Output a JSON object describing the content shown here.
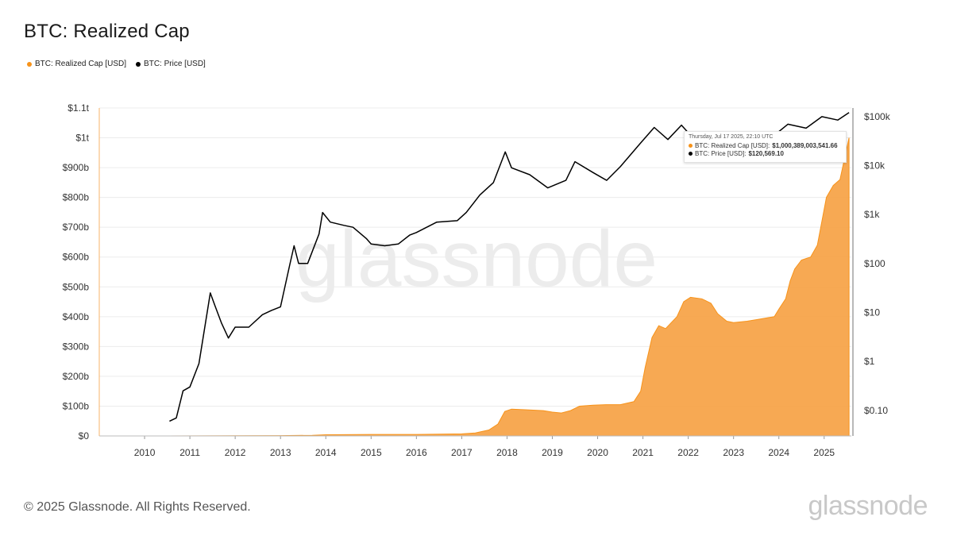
{
  "title": "BTC: Realized Cap",
  "legend": [
    {
      "label": "BTC: Realized Cap [USD]",
      "color": "#f7931a"
    },
    {
      "label": "BTC: Price [USD]",
      "color": "#000000"
    }
  ],
  "watermark": "glassnode",
  "footer": "© 2025 Glassnode. All Rights Reserved.",
  "brand": "glassnode",
  "tooltip": {
    "date": "Thursday, Jul 17 2025, 22:10 UTC",
    "rows": [
      {
        "label": "BTC: Realized Cap [USD]:",
        "value": "$1,000,389,003,541.66",
        "color": "#f7931a"
      },
      {
        "label": "BTC: Price [USD]:",
        "value": "$120,569.10",
        "color": "#000000"
      }
    ]
  },
  "chart_data": {
    "type": "area",
    "title": "BTC: Realized Cap",
    "x_ticks": [
      "2010",
      "2011",
      "2012",
      "2013",
      "2014",
      "2015",
      "2016",
      "2017",
      "2018",
      "2019",
      "2020",
      "2021",
      "2022",
      "2023",
      "2024",
      "2025"
    ],
    "x_range": [
      2009.0,
      2025.6
    ],
    "left_axis": {
      "ticks": [
        "$0",
        "$100b",
        "$200b",
        "$300b",
        "$400b",
        "$500b",
        "$600b",
        "$700b",
        "$800b",
        "$900b",
        "$1t",
        "$1.1t"
      ],
      "range": [
        0,
        1100
      ]
    },
    "right_axis": {
      "scale": "log",
      "ticks": [
        "$0.10",
        "$1",
        "$10",
        "$100",
        "$1k",
        "$10k",
        "$100k"
      ],
      "range": [
        0.03,
        150000
      ]
    },
    "grid": true,
    "legend_position": "top-left",
    "series": [
      {
        "name": "BTC: Realized Cap [USD]",
        "unit": "billions USD",
        "color": "#f7931a",
        "axis": "left",
        "points": [
          [
            2009.0,
            0
          ],
          [
            2010.5,
            0
          ],
          [
            2012,
            0.5
          ],
          [
            2013,
            1
          ],
          [
            2013.7,
            2
          ],
          [
            2014,
            4
          ],
          [
            2015,
            5
          ],
          [
            2016,
            5
          ],
          [
            2017,
            7
          ],
          [
            2017.3,
            10
          ],
          [
            2017.6,
            20
          ],
          [
            2017.8,
            40
          ],
          [
            2017.95,
            82
          ],
          [
            2018.1,
            90
          ],
          [
            2018.4,
            88
          ],
          [
            2018.8,
            85
          ],
          [
            2019.0,
            80
          ],
          [
            2019.2,
            77
          ],
          [
            2019.4,
            85
          ],
          [
            2019.6,
            100
          ],
          [
            2019.9,
            103
          ],
          [
            2020.2,
            105
          ],
          [
            2020.5,
            105
          ],
          [
            2020.8,
            115
          ],
          [
            2020.95,
            150
          ],
          [
            2021.05,
            230
          ],
          [
            2021.2,
            330
          ],
          [
            2021.35,
            370
          ],
          [
            2021.5,
            360
          ],
          [
            2021.75,
            400
          ],
          [
            2021.9,
            450
          ],
          [
            2022.05,
            465
          ],
          [
            2022.3,
            460
          ],
          [
            2022.5,
            445
          ],
          [
            2022.65,
            410
          ],
          [
            2022.85,
            385
          ],
          [
            2023.0,
            380
          ],
          [
            2023.3,
            385
          ],
          [
            2023.5,
            390
          ],
          [
            2023.9,
            400
          ],
          [
            2024.0,
            425
          ],
          [
            2024.15,
            460
          ],
          [
            2024.25,
            520
          ],
          [
            2024.35,
            560
          ],
          [
            2024.5,
            590
          ],
          [
            2024.7,
            600
          ],
          [
            2024.85,
            640
          ],
          [
            2024.95,
            720
          ],
          [
            2025.05,
            800
          ],
          [
            2025.2,
            840
          ],
          [
            2025.35,
            860
          ],
          [
            2025.45,
            930
          ],
          [
            2025.55,
            1000
          ]
        ]
      },
      {
        "name": "BTC: Price [USD]",
        "unit": "USD",
        "color": "#000000",
        "axis": "right",
        "points": [
          [
            2010.55,
            0.06
          ],
          [
            2010.7,
            0.07
          ],
          [
            2010.85,
            0.25
          ],
          [
            2011.0,
            0.3
          ],
          [
            2011.2,
            0.9
          ],
          [
            2011.45,
            25
          ],
          [
            2011.55,
            14
          ],
          [
            2011.7,
            6
          ],
          [
            2011.85,
            3
          ],
          [
            2012.0,
            5
          ],
          [
            2012.3,
            5
          ],
          [
            2012.6,
            9
          ],
          [
            2012.8,
            11
          ],
          [
            2013.0,
            13
          ],
          [
            2013.2,
            90
          ],
          [
            2013.3,
            230
          ],
          [
            2013.4,
            100
          ],
          [
            2013.6,
            100
          ],
          [
            2013.85,
            400
          ],
          [
            2013.93,
            1100
          ],
          [
            2014.1,
            700
          ],
          [
            2014.4,
            600
          ],
          [
            2014.6,
            550
          ],
          [
            2014.9,
            320
          ],
          [
            2015.0,
            250
          ],
          [
            2015.3,
            230
          ],
          [
            2015.6,
            250
          ],
          [
            2015.85,
            380
          ],
          [
            2016.0,
            430
          ],
          [
            2016.45,
            700
          ],
          [
            2016.9,
            750
          ],
          [
            2017.1,
            1100
          ],
          [
            2017.4,
            2500
          ],
          [
            2017.7,
            4500
          ],
          [
            2017.96,
            19000
          ],
          [
            2018.1,
            9000
          ],
          [
            2018.5,
            6500
          ],
          [
            2018.9,
            3500
          ],
          [
            2019.3,
            5000
          ],
          [
            2019.5,
            12000
          ],
          [
            2019.9,
            7200
          ],
          [
            2020.2,
            5000
          ],
          [
            2020.5,
            9500
          ],
          [
            2020.95,
            29000
          ],
          [
            2021.25,
            60000
          ],
          [
            2021.55,
            34000
          ],
          [
            2021.85,
            67000
          ],
          [
            2022.0,
            47000
          ],
          [
            2022.45,
            20000
          ],
          [
            2022.9,
            16500
          ],
          [
            2023.2,
            28000
          ],
          [
            2023.8,
            35000
          ],
          [
            2024.2,
            70000
          ],
          [
            2024.6,
            58000
          ],
          [
            2024.95,
            100000
          ],
          [
            2025.3,
            85000
          ],
          [
            2025.55,
            120569
          ]
        ]
      }
    ]
  }
}
